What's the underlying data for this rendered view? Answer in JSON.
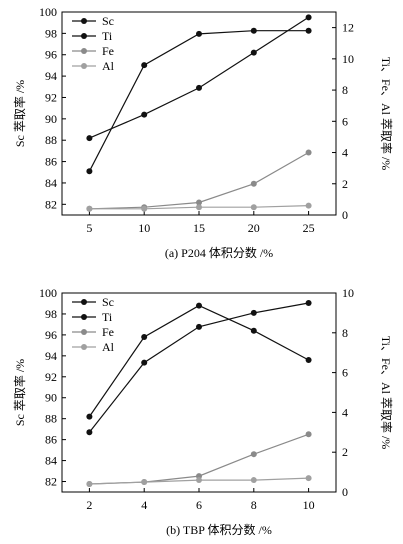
{
  "colors": {
    "dark": "#111111",
    "gray": "#8a8a8a",
    "lightgray": "#a0a0a0"
  },
  "chart_data": [
    {
      "type": "line",
      "caption": "(a) P204 体积分数 /%",
      "ylabel_left": "Sc 萃取率 /%",
      "ylabel_right": "Ti、Fe、Al 萃取率 /%",
      "x": [
        5,
        10,
        15,
        20,
        25
      ],
      "xlim": [
        2.5,
        27.5
      ],
      "xticks": [
        5,
        10,
        15,
        20,
        25
      ],
      "ylim_left": [
        81,
        100
      ],
      "yticks_left": [
        82,
        84,
        86,
        88,
        90,
        92,
        94,
        96,
        98,
        100
      ],
      "ylim_right": [
        0,
        13
      ],
      "yticks_right": [
        0,
        2,
        4,
        6,
        8,
        10,
        12
      ],
      "legend_position": "top-left",
      "series": [
        {
          "name": "Sc",
          "axis": "left",
          "values": [
            88.2,
            90.4,
            92.9,
            96.2,
            99.5
          ],
          "color": "#111111"
        },
        {
          "name": "Ti",
          "axis": "right",
          "values": [
            2.8,
            9.6,
            11.6,
            11.8,
            11.8
          ],
          "color": "#111111"
        },
        {
          "name": "Fe",
          "axis": "right",
          "values": [
            0.4,
            0.5,
            0.8,
            2.0,
            4.0
          ],
          "color": "#8a8a8a"
        },
        {
          "name": "Al",
          "axis": "right",
          "values": [
            0.4,
            0.4,
            0.5,
            0.5,
            0.6
          ],
          "color": "#a0a0a0"
        }
      ]
    },
    {
      "type": "line",
      "caption": "(b) TBP 体积分数 /%",
      "ylabel_left": "Sc 萃取率 /%",
      "ylabel_right": "Ti、Fe、Al 萃取率 /%",
      "x": [
        2,
        4,
        6,
        8,
        10
      ],
      "xlim": [
        1,
        11
      ],
      "xticks": [
        2,
        4,
        6,
        8,
        10
      ],
      "ylim_left": [
        81,
        100
      ],
      "yticks_left": [
        82,
        84,
        86,
        88,
        90,
        92,
        94,
        96,
        98,
        100
      ],
      "ylim_right": [
        0,
        10
      ],
      "yticks_right": [
        0,
        2,
        4,
        6,
        8,
        10
      ],
      "legend_position": "top-left",
      "series": [
        {
          "name": "Sc",
          "axis": "left",
          "values": [
            88.2,
            95.8,
            98.8,
            96.4,
            93.6
          ],
          "color": "#111111"
        },
        {
          "name": "Ti",
          "axis": "right",
          "values": [
            3.0,
            6.5,
            8.3,
            9.0,
            9.5
          ],
          "color": "#111111"
        },
        {
          "name": "Fe",
          "axis": "right",
          "values": [
            0.4,
            0.5,
            0.8,
            1.9,
            2.9
          ],
          "color": "#8a8a8a"
        },
        {
          "name": "Al",
          "axis": "right",
          "values": [
            0.4,
            0.5,
            0.6,
            0.6,
            0.7
          ],
          "color": "#a0a0a0"
        }
      ]
    }
  ]
}
